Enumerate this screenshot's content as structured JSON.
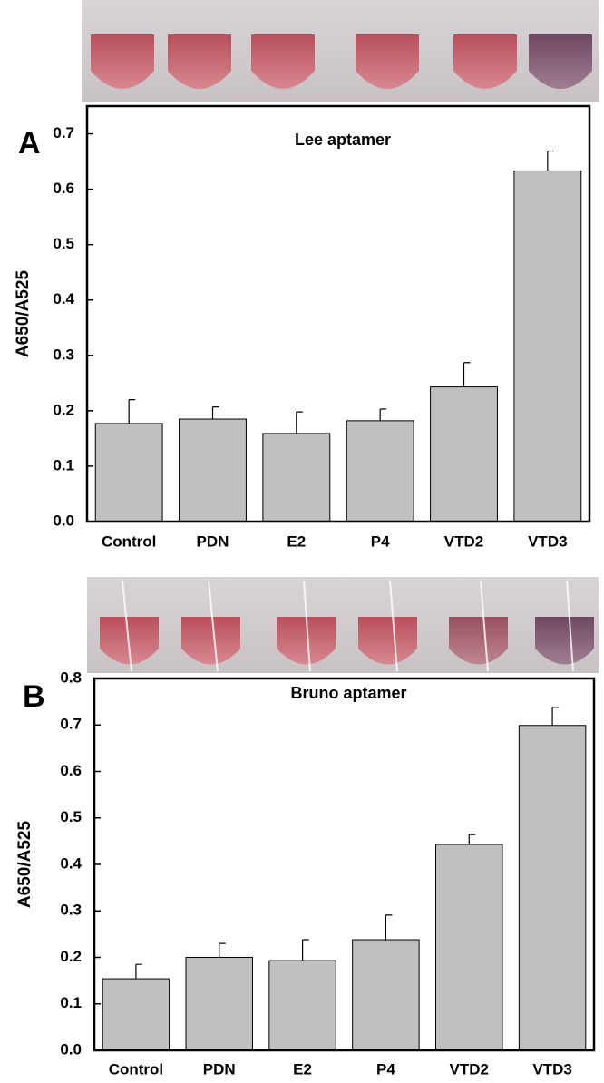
{
  "chart_data": [
    {
      "type": "bar",
      "panel_label": "A",
      "title": "Lee aptamer",
      "ylabel": "A650/A525",
      "categories": [
        "Control",
        "PDN",
        "E2",
        "P4",
        "VTD2",
        "VTD3"
      ],
      "values": [
        0.177,
        0.185,
        0.159,
        0.182,
        0.243,
        0.633
      ],
      "errors": [
        0.043,
        0.022,
        0.039,
        0.021,
        0.044,
        0.036
      ],
      "color": "#c0c0c0",
      "ylim": [
        0,
        0.75
      ],
      "yticks": [
        {
          "value": 0,
          "label": "0.0"
        },
        0.1,
        0.2,
        0.3,
        0.4,
        0.5,
        0.6,
        0.7
      ]
    },
    {
      "type": "bar",
      "panel_label": "B",
      "title": "Bruno aptamer",
      "ylabel": "A650/A525",
      "categories": [
        "Control",
        "PDN",
        "E2",
        "P4",
        "VTD2",
        "VTD3"
      ],
      "values": [
        0.154,
        0.2,
        0.193,
        0.238,
        0.443,
        0.699
      ],
      "errors": [
        0.031,
        0.03,
        0.045,
        0.053,
        0.021,
        0.039
      ],
      "color": "#c0c0c0",
      "ylim": [
        0,
        0.8
      ],
      "yticks": [
        {
          "value": 0,
          "label": "0.0"
        },
        0.1,
        0.2,
        0.3,
        0.4,
        0.5,
        0.6,
        0.7,
        0.8
      ]
    }
  ]
}
